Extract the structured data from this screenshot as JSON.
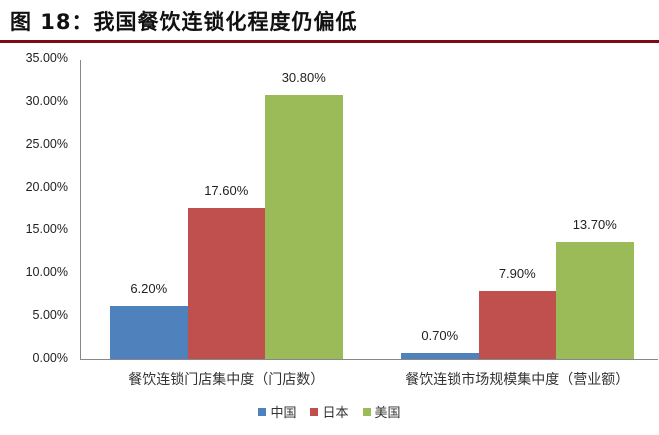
{
  "title": "图 18：我国餐饮连锁化程度仍偏低",
  "colors": {
    "china": "#4f81bd",
    "japan": "#c0504d",
    "usa": "#9bbb59",
    "rule": "#7a0c14"
  },
  "chart_data": {
    "type": "bar",
    "title": "图 18：我国餐饮连锁化程度仍偏低",
    "categories": [
      "餐饮连锁门店集中度（门店数）",
      "餐饮连锁市场规模集中度（营业额）"
    ],
    "series": [
      {
        "name": "中国",
        "values": [
          6.2,
          0.7
        ],
        "labels": [
          "6.20%",
          "0.70%"
        ]
      },
      {
        "name": "日本",
        "values": [
          17.6,
          7.9
        ],
        "labels": [
          "17.60%",
          "7.90%"
        ]
      },
      {
        "name": "美国",
        "values": [
          30.8,
          13.7
        ],
        "labels": [
          "30.80%",
          "13.70%"
        ]
      }
    ],
    "xlabel": "",
    "ylabel": "",
    "ylim": [
      0,
      35
    ],
    "yticks": [
      "0.00%",
      "5.00%",
      "10.00%",
      "15.00%",
      "20.00%",
      "25.00%",
      "30.00%",
      "35.00%"
    ],
    "grid": false,
    "legend_position": "bottom"
  }
}
